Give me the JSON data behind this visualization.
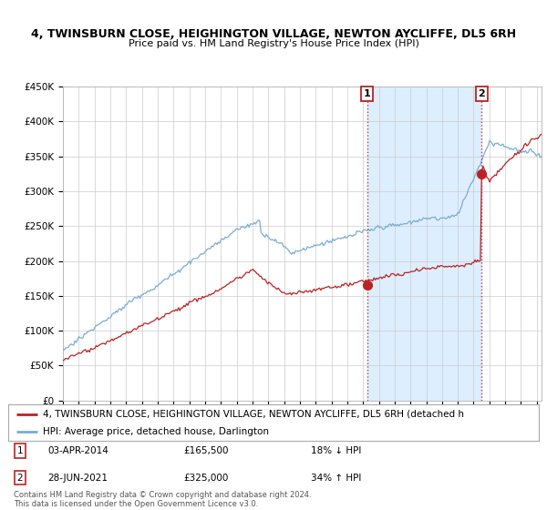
{
  "title_line1": "4, TWINSBURN CLOSE, HEIGHINGTON VILLAGE, NEWTON AYCLIFFE, DL5 6RH",
  "title_line2": "Price paid vs. HM Land Registry's House Price Index (HPI)",
  "ylim": [
    0,
    450000
  ],
  "yticks": [
    0,
    50000,
    100000,
    150000,
    200000,
    250000,
    300000,
    350000,
    400000,
    450000
  ],
  "ytick_labels": [
    "£0",
    "£50K",
    "£100K",
    "£150K",
    "£200K",
    "£250K",
    "£300K",
    "£350K",
    "£400K",
    "£450K"
  ],
  "hpi_color": "#7aadd4",
  "price_color": "#bb2222",
  "shade_color": "#ddeeff",
  "annotation1_date": "03-APR-2014",
  "annotation1_price": "£165,500",
  "annotation1_hpi": "18% ↓ HPI",
  "annotation1_year": 2014.25,
  "annotation1_value": 165500,
  "annotation2_date": "28-JUN-2021",
  "annotation2_price": "£325,000",
  "annotation2_hpi": "34% ↑ HPI",
  "annotation2_year": 2021.5,
  "annotation2_value": 325000,
  "legend_label_price": "4, TWINSBURN CLOSE, HEIGHINGTON VILLAGE, NEWTON AYCLIFFE, DL5 6RH (detached h",
  "legend_label_hpi": "HPI: Average price, detached house, Darlington",
  "footnote": "Contains HM Land Registry data © Crown copyright and database right 2024.\nThis data is licensed under the Open Government Licence v3.0.",
  "background_color": "#ffffff",
  "grid_color": "#cccccc",
  "xlim_start": 1995,
  "xlim_end": 2025.3
}
